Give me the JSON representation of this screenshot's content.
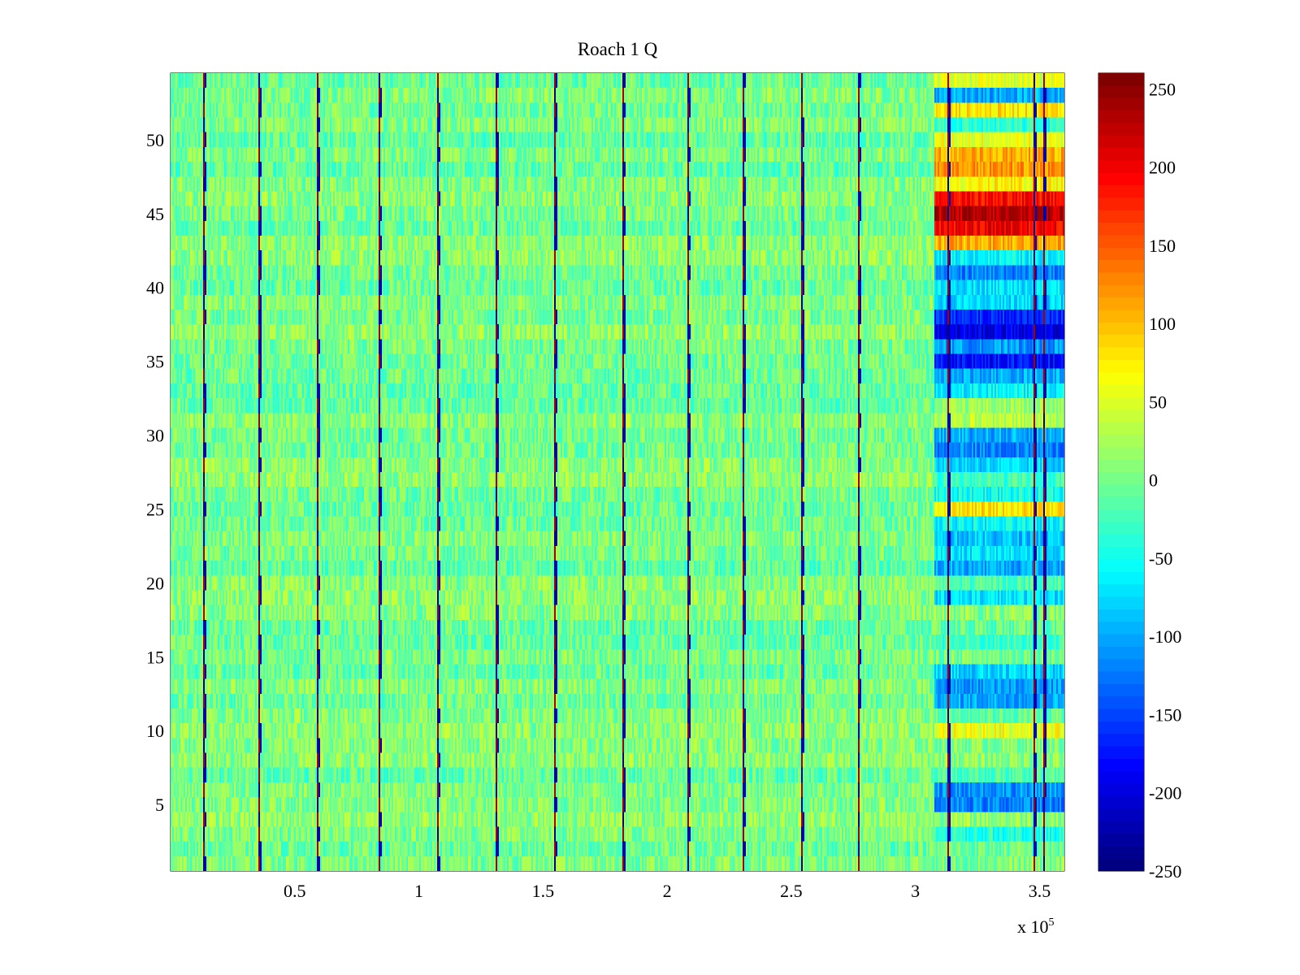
{
  "chart_data": {
    "type": "heatmap",
    "title": "Roach 1 Q",
    "xlabel": "",
    "ylabel": "",
    "x_multiplier_label": "x 10",
    "x_multiplier_exponent": "5",
    "xlim": [
      0,
      360000
    ],
    "ylim": [
      0.5,
      54.5
    ],
    "xticks": [
      {
        "value": 50000,
        "label": "0.5"
      },
      {
        "value": 100000,
        "label": "1"
      },
      {
        "value": 150000,
        "label": "1.5"
      },
      {
        "value": 200000,
        "label": "2"
      },
      {
        "value": 250000,
        "label": "2.5"
      },
      {
        "value": 300000,
        "label": "3"
      },
      {
        "value": 350000,
        "label": "3.5"
      }
    ],
    "yticks": [
      {
        "value": 5,
        "label": "5"
      },
      {
        "value": 10,
        "label": "10"
      },
      {
        "value": 15,
        "label": "15"
      },
      {
        "value": 20,
        "label": "20"
      },
      {
        "value": 25,
        "label": "25"
      },
      {
        "value": 30,
        "label": "30"
      },
      {
        "value": 35,
        "label": "35"
      },
      {
        "value": 40,
        "label": "40"
      },
      {
        "value": 45,
        "label": "45"
      },
      {
        "value": 50,
        "label": "50"
      }
    ],
    "colorbar": {
      "colormap": "jet",
      "clim": [
        -250,
        260
      ],
      "ticks": [
        {
          "value": 250,
          "label": "250"
        },
        {
          "value": 200,
          "label": "200"
        },
        {
          "value": 150,
          "label": "150"
        },
        {
          "value": 100,
          "label": "100"
        },
        {
          "value": 50,
          "label": "50"
        },
        {
          "value": 0,
          "label": "0"
        },
        {
          "value": -50,
          "label": "-50"
        },
        {
          "value": -100,
          "label": "-100"
        },
        {
          "value": -150,
          "label": "-150"
        },
        {
          "value": -200,
          "label": "-200"
        },
        {
          "value": -250,
          "label": "-250"
        }
      ]
    },
    "rows": 54,
    "background_value": 0,
    "noise_amplitude": 35,
    "vertical_streaks_x": [
      13500,
      35500,
      59000,
      84000,
      107500,
      131000,
      154500,
      182000,
      208500,
      231000,
      254000,
      277500,
      313000,
      348000,
      351500
    ],
    "tail_region_x": [
      307000,
      360000
    ],
    "tail_row_values": [
      {
        "row": 3,
        "value": -40
      },
      {
        "row": 5,
        "value": -120
      },
      {
        "row": 6,
        "value": -110
      },
      {
        "row": 7,
        "value": -20
      },
      {
        "row": 10,
        "value": 60
      },
      {
        "row": 11,
        "value": -10
      },
      {
        "row": 12,
        "value": -100
      },
      {
        "row": 13,
        "value": -110
      },
      {
        "row": 14,
        "value": -80
      },
      {
        "row": 16,
        "value": -30
      },
      {
        "row": 19,
        "value": -70
      },
      {
        "row": 20,
        "value": -20
      },
      {
        "row": 21,
        "value": -100
      },
      {
        "row": 22,
        "value": -70
      },
      {
        "row": 23,
        "value": -90
      },
      {
        "row": 24,
        "value": -60
      },
      {
        "row": 25,
        "value": 80
      },
      {
        "row": 26,
        "value": -50
      },
      {
        "row": 27,
        "value": -30
      },
      {
        "row": 28,
        "value": -80
      },
      {
        "row": 29,
        "value": -120
      },
      {
        "row": 30,
        "value": -100
      },
      {
        "row": 31,
        "value": 30
      },
      {
        "row": 32,
        "value": 20
      },
      {
        "row": 33,
        "value": -60
      },
      {
        "row": 34,
        "value": -100
      },
      {
        "row": 35,
        "value": -180
      },
      {
        "row": 36,
        "value": -110
      },
      {
        "row": 37,
        "value": -200
      },
      {
        "row": 38,
        "value": -170
      },
      {
        "row": 39,
        "value": -80
      },
      {
        "row": 40,
        "value": -70
      },
      {
        "row": 41,
        "value": -120
      },
      {
        "row": 42,
        "value": -60
      },
      {
        "row": 43,
        "value": 110
      },
      {
        "row": 44,
        "value": 200
      },
      {
        "row": 45,
        "value": 230
      },
      {
        "row": 46,
        "value": 190
      },
      {
        "row": 47,
        "value": 70
      },
      {
        "row": 48,
        "value": 120
      },
      {
        "row": 49,
        "value": 110
      },
      {
        "row": 50,
        "value": 60
      },
      {
        "row": 51,
        "value": -40
      },
      {
        "row": 52,
        "value": 80
      },
      {
        "row": 53,
        "value": -100
      },
      {
        "row": 54,
        "value": 50
      }
    ]
  }
}
